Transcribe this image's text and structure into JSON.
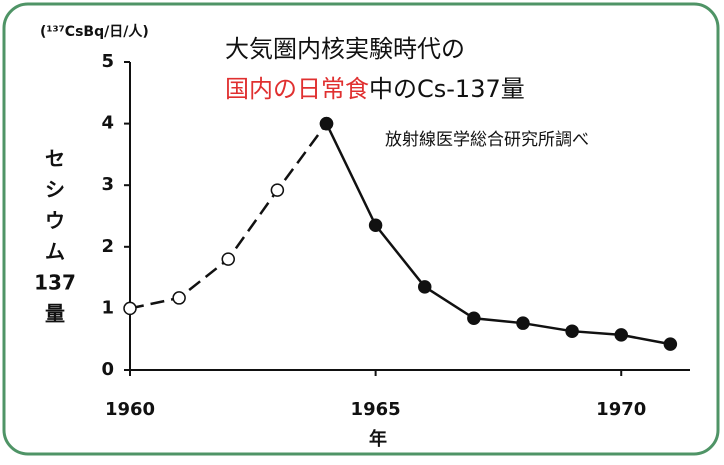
{
  "chart_data": {
    "type": "line",
    "unit_label": "(¹³⁷CsBq/日/人)",
    "title_line1": "大気圏内核実験時代の",
    "title_line2": [
      {
        "text": "国内の日常食",
        "color": "#e03030"
      },
      {
        "text": "中のCs-137量",
        "color": "#111111"
      }
    ],
    "subtitle": "放射線医学総合研究所調べ",
    "ylabel_lines": [
      "セ",
      "シ",
      "ウ",
      "ム",
      "137",
      "量"
    ],
    "xlabel": "年",
    "x": [
      1960,
      1961,
      1962,
      1963,
      1964,
      1965,
      1966,
      1967,
      1968,
      1969,
      1970,
      1971
    ],
    "series": [
      {
        "color": "#111111",
        "dash": true,
        "marker": "open",
        "values": [
          1.0,
          1.17,
          1.8,
          2.92,
          4.0,
          null,
          null,
          null,
          null,
          null,
          null,
          null
        ]
      },
      {
        "color": "#111111",
        "dash": false,
        "marker": "filled",
        "values": [
          null,
          null,
          null,
          null,
          4.0,
          2.35,
          1.35,
          0.84,
          0.76,
          0.63,
          0.57,
          0.42
        ]
      }
    ],
    "xlim": [
      1960,
      1971.4
    ],
    "xticks": [
      1960,
      1965,
      1970
    ],
    "ylim": [
      0,
      5
    ],
    "yticks": [
      0,
      1,
      2,
      3,
      4,
      5
    ],
    "grid": false
  }
}
